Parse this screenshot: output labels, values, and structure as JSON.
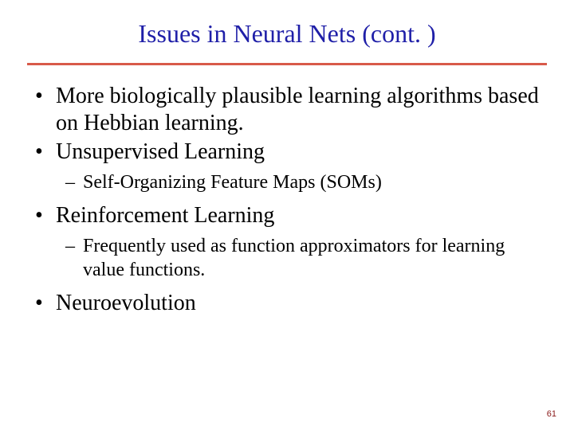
{
  "title": "Issues in Neural Nets (cont. )",
  "title_color": "#1f1fa8",
  "hr_color": "#d85a4a",
  "bullet_color": "#000000",
  "text_color": "#000000",
  "bullets": [
    {
      "text": "More biologically plausible learning algorithms based on Hebbian learning."
    },
    {
      "text": "Unsupervised Learning",
      "sub": [
        {
          "text": "Self-Organizing Feature Maps (SOMs)"
        }
      ]
    },
    {
      "text": "Reinforcement Learning",
      "sub": [
        {
          "text": "Frequently used as function approximators for learning value functions."
        }
      ]
    },
    {
      "text": "Neuroevolution"
    }
  ],
  "page_number": "61",
  "page_number_color": "#8a1a1a"
}
